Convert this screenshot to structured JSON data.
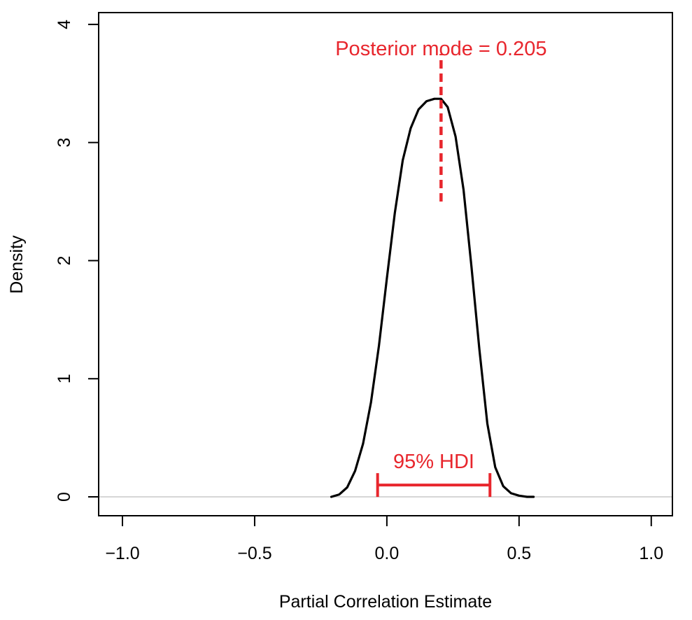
{
  "chart_data": {
    "type": "line",
    "title": "",
    "xlabel": "Partial Correlation Estimate",
    "ylabel": "Density",
    "xlim": [
      -1.09,
      1.08
    ],
    "ylim": [
      -0.16,
      4.1
    ],
    "xticks": [
      -1.0,
      -0.5,
      0.0,
      0.5,
      1.0
    ],
    "xtick_labels": [
      "−1.0",
      "−0.5",
      "0.0",
      "0.5",
      "1.0"
    ],
    "yticks": [
      0,
      1,
      2,
      3,
      4
    ],
    "ytick_labels": [
      "0",
      "1",
      "2",
      "3",
      "4"
    ],
    "grid": false,
    "baseline_y": 0,
    "series": [
      {
        "color": "#000000",
        "x": [
          -0.21,
          -0.18,
          -0.15,
          -0.12,
          -0.09,
          -0.06,
          -0.03,
          0.0,
          0.03,
          0.06,
          0.09,
          0.12,
          0.15,
          0.18,
          0.205,
          0.23,
          0.26,
          0.29,
          0.32,
          0.35,
          0.38,
          0.41,
          0.44,
          0.47,
          0.5,
          0.53,
          0.555
        ],
        "y": [
          0.0,
          0.02,
          0.08,
          0.22,
          0.45,
          0.8,
          1.28,
          1.85,
          2.4,
          2.85,
          3.12,
          3.28,
          3.35,
          3.37,
          3.37,
          3.3,
          3.05,
          2.6,
          1.95,
          1.25,
          0.62,
          0.25,
          0.09,
          0.03,
          0.01,
          0.0,
          0.0
        ]
      }
    ],
    "annotations": {
      "mode": {
        "label": "Posterior mode = 0.205",
        "x": 0.205,
        "y_from": 2.5,
        "y_to": 3.75,
        "color": "#e8262d"
      },
      "hdi": {
        "label": "95% HDI",
        "lower": -0.035,
        "upper": 0.39,
        "y": 0.1,
        "color": "#e8262d"
      }
    }
  }
}
